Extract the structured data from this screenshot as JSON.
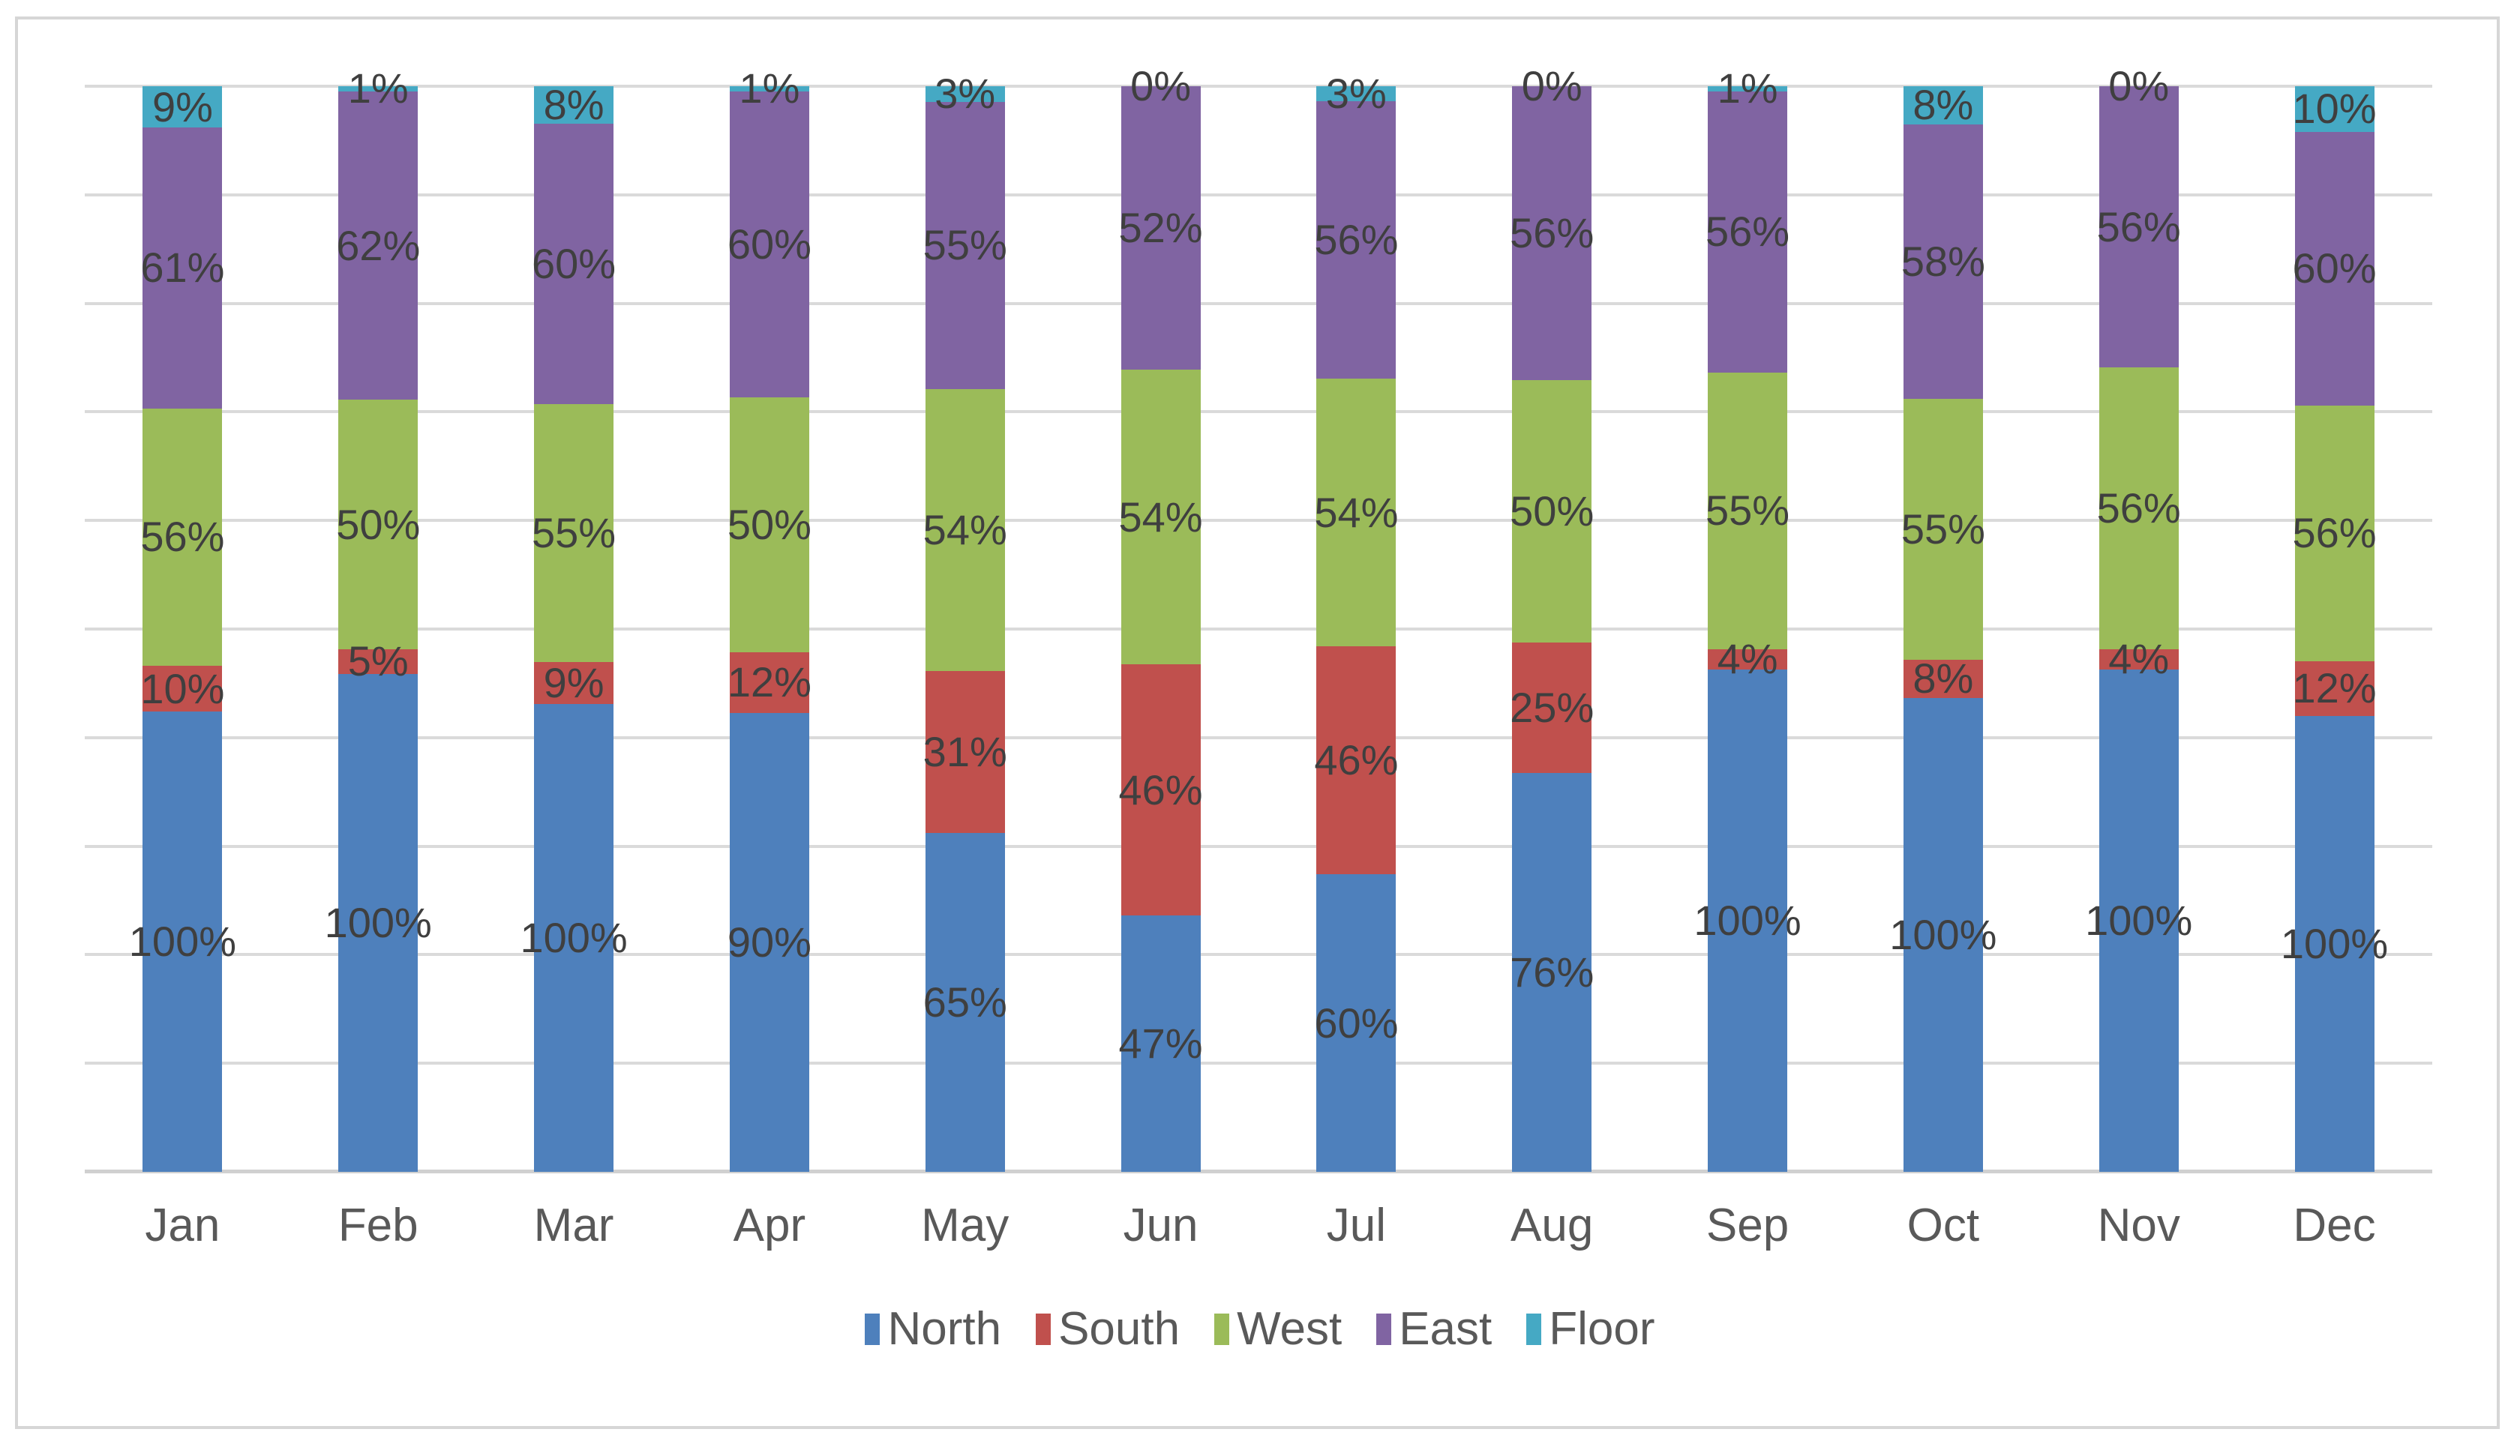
{
  "chart": {
    "background": "#FFFFFF",
    "border_color": "#D6D6D6",
    "gridline_color": "#DADADA",
    "axis_line_color": "#D0D0D0",
    "data_label_color": "#3F3F3F",
    "axis_text_color": "#595959"
  },
  "chart_data": {
    "type": "bar",
    "stacked": "100%",
    "title": "",
    "xlabel": "",
    "ylabel": "",
    "ylim": [
      0,
      100
    ],
    "grid": "horizontal gridlines every 10%, 11 lines, no y-axis tick labels",
    "legend_position": "bottom",
    "data_label_format": "{value}%",
    "categories": [
      "Jan",
      "Feb",
      "Mar",
      "Apr",
      "May",
      "Jun",
      "Jul",
      "Aug",
      "Sep",
      "Oct",
      "Nov",
      "Dec"
    ],
    "series": [
      {
        "name": "North",
        "color": "#4E80BC",
        "values": [
          100,
          100,
          100,
          90,
          65,
          47,
          60,
          76,
          100,
          100,
          100,
          100
        ]
      },
      {
        "name": "South",
        "color": "#C0504D",
        "values": [
          10,
          5,
          9,
          12,
          31,
          46,
          46,
          25,
          4,
          8,
          4,
          12
        ]
      },
      {
        "name": "West",
        "color": "#9BBB59",
        "values": [
          56,
          50,
          55,
          50,
          54,
          54,
          54,
          50,
          55,
          55,
          56,
          56
        ]
      },
      {
        "name": "East",
        "color": "#8064A2",
        "values": [
          61,
          62,
          60,
          60,
          55,
          52,
          56,
          56,
          56,
          58,
          56,
          60
        ]
      },
      {
        "name": "Floor",
        "color": "#45A9C4",
        "values": [
          9,
          1,
          8,
          1,
          3,
          0,
          3,
          0,
          1,
          8,
          0,
          10
        ]
      }
    ]
  }
}
